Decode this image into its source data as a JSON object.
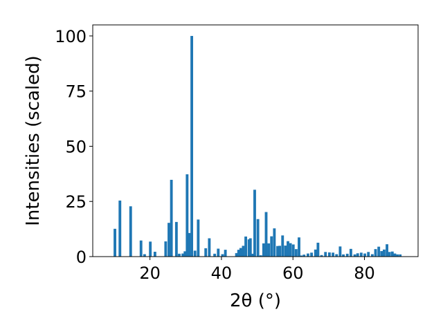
{
  "chart_data": {
    "type": "bar",
    "xlabel": "2θ (°)",
    "ylabel": "Intensities (scaled)",
    "xlim": [
      4,
      95
    ],
    "ylim": [
      0,
      105
    ],
    "xticks": [
      20,
      40,
      60,
      80
    ],
    "yticks": [
      0,
      25,
      50,
      75,
      100
    ],
    "grid": false,
    "bar_color": "#1f77b4",
    "bar_width": 0.75,
    "x": [
      10.2,
      11.6,
      14.6,
      17.5,
      18.5,
      20.1,
      21.4,
      24.4,
      25.3,
      26.0,
      27.4,
      28.2,
      29.2,
      29.8,
      30.4,
      31.0,
      31.7,
      32.6,
      33.5,
      35.6,
      36.6,
      38.1,
      39.1,
      40.3,
      41.1,
      44.2,
      44.8,
      45.4,
      46.1,
      46.8,
      47.7,
      48.1,
      48.7,
      49.3,
      50.2,
      51.0,
      51.8,
      52.5,
      53.2,
      54.0,
      54.8,
      55.7,
      56.3,
      57.1,
      57.9,
      58.6,
      59.3,
      60.1,
      60.9,
      61.7,
      62.3,
      63.1,
      64.2,
      65.2,
      66.3,
      67.0,
      68.0,
      69.1,
      70.2,
      71.2,
      72.2,
      73.2,
      74.1,
      75.2,
      76.2,
      77.3,
      78.1,
      79.1,
      80.1,
      81.1,
      82.2,
      83.1,
      84.0,
      84.8,
      85.5,
      86.3,
      87.0,
      87.8,
      88.5,
      89.2,
      90.0
    ],
    "values": [
      12.6,
      25.4,
      22.8,
      7.3,
      1.1,
      6.8,
      2.2,
      6.9,
      15.3,
      34.8,
      15.7,
      1.3,
      1.4,
      2.4,
      37.3,
      10.7,
      100.0,
      2.7,
      16.8,
      3.8,
      8.3,
      1.3,
      3.6,
      1.1,
      3.1,
      1.6,
      3.1,
      3.9,
      4.9,
      9.1,
      7.8,
      8.3,
      1.3,
      30.3,
      17.0,
      0.6,
      6.0,
      20.2,
      6.0,
      9.2,
      12.8,
      4.8,
      4.9,
      9.6,
      5.0,
      7.0,
      6.1,
      5.5,
      3.4,
      8.7,
      0.5,
      0.9,
      1.4,
      1.8,
      3.2,
      6.3,
      0.7,
      2.1,
      1.9,
      1.8,
      1.1,
      4.6,
      1.0,
      1.3,
      3.5,
      1.0,
      1.5,
      1.8,
      1.4,
      2.1,
      1.1,
      3.4,
      4.5,
      2.5,
      3.2,
      5.6,
      2.1,
      2.3,
      1.4,
      1.0,
      1.0
    ]
  }
}
